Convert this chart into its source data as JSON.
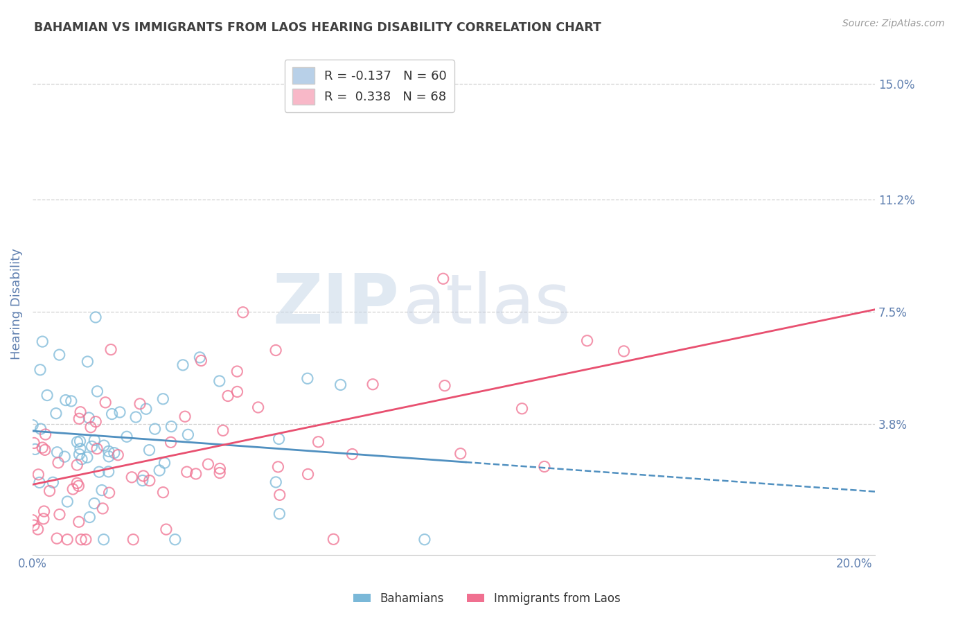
{
  "title": "BAHAMIAN VS IMMIGRANTS FROM LAOS HEARING DISABILITY CORRELATION CHART",
  "source": "Source: ZipAtlas.com",
  "ylabel": "Hearing Disability",
  "xlim": [
    0.0,
    0.205
  ],
  "ylim": [
    -0.005,
    0.16
  ],
  "ytick_vals": [
    0.038,
    0.075,
    0.112,
    0.15
  ],
  "ytick_labels": [
    "3.8%",
    "7.5%",
    "11.2%",
    "15.0%"
  ],
  "xticks": [
    0.0,
    0.05,
    0.1,
    0.15,
    0.2
  ],
  "xtick_labels": [
    "0.0%",
    "",
    "",
    "",
    "20.0%"
  ],
  "legend1_label": "R = -0.137   N = 60",
  "legend2_label": "R =  0.338   N = 68",
  "legend1_patch_color": "#b8d0e8",
  "legend2_patch_color": "#f8b8c8",
  "scatter1_color": "#7ab8d8",
  "scatter2_color": "#f07090",
  "line1_color": "#5090c0",
  "line2_color": "#e85070",
  "watermark_zip": "ZIP",
  "watermark_atlas": "atlas",
  "background_color": "#ffffff",
  "grid_color": "#d0d0d0",
  "title_color": "#404040",
  "axis_label_color": "#6080b0",
  "tick_label_color": "#6080b0",
  "R1": -0.137,
  "N1": 60,
  "R2": 0.338,
  "N2": 68
}
